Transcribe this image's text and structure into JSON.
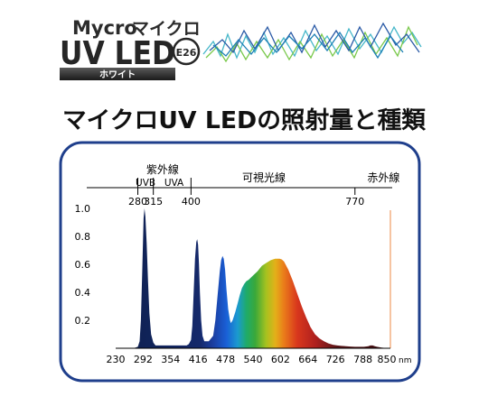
{
  "header": {
    "brand_en": "Mycro",
    "brand_jp": "マイクロ",
    "product_main": "UV LED",
    "socket_badge": "E26",
    "color_label": "ホワイト"
  },
  "section_title": "マイクロUV LEDの照射量と種類",
  "chart_data": {
    "type": "area",
    "title": "",
    "xlabel": "",
    "ylabel": "",
    "x_unit": "nm",
    "xlim": [
      230,
      850
    ],
    "ylim": [
      0,
      1.0
    ],
    "x_ticks": [
      230,
      292,
      354,
      416,
      478,
      540,
      602,
      664,
      726,
      788,
      850
    ],
    "y_ticks": [
      0.2,
      0.4,
      0.6,
      0.8,
      1.0
    ],
    "grid": false,
    "bands": {
      "uv": "紫外線",
      "uvb": "UVB",
      "uva": "UVA",
      "visible": "可視光線",
      "infrared": "赤外線"
    },
    "band_boundaries": [
      280,
      315,
      400,
      770
    ],
    "series": [
      {
        "x": [
          230,
          270,
          280,
          284,
          287,
          290,
          293,
          295,
          297,
          300,
          303,
          306,
          310,
          315,
          320,
          325,
          330,
          340,
          350,
          360,
          370,
          380,
          390,
          395,
          400,
          403,
          406,
          409,
          412,
          414,
          416,
          418,
          420,
          423,
          426,
          430,
          440,
          450,
          455,
          460,
          465,
          468,
          471,
          474,
          477,
          480,
          484,
          488,
          490,
          494,
          500,
          506,
          510,
          515,
          520,
          525,
          530,
          540,
          550,
          560,
          570,
          580,
          590,
          600,
          605,
          610,
          620,
          630,
          640,
          650,
          660,
          670,
          680,
          690,
          700,
          710,
          720,
          730,
          740,
          750,
          760,
          770,
          780,
          790,
          800,
          805,
          810,
          815,
          820,
          830,
          840,
          848,
          850
        ],
        "values": [
          0.0,
          0.0,
          0.01,
          0.05,
          0.2,
          0.55,
          0.93,
          1.0,
          0.94,
          0.75,
          0.48,
          0.25,
          0.1,
          0.04,
          0.02,
          0.02,
          0.02,
          0.02,
          0.02,
          0.02,
          0.02,
          0.02,
          0.02,
          0.03,
          0.06,
          0.16,
          0.4,
          0.64,
          0.76,
          0.78,
          0.74,
          0.6,
          0.4,
          0.2,
          0.09,
          0.05,
          0.05,
          0.09,
          0.2,
          0.38,
          0.55,
          0.63,
          0.66,
          0.64,
          0.56,
          0.42,
          0.28,
          0.2,
          0.18,
          0.2,
          0.26,
          0.33,
          0.38,
          0.43,
          0.46,
          0.48,
          0.49,
          0.52,
          0.55,
          0.59,
          0.61,
          0.63,
          0.64,
          0.64,
          0.635,
          0.62,
          0.56,
          0.48,
          0.39,
          0.3,
          0.22,
          0.15,
          0.1,
          0.07,
          0.05,
          0.035,
          0.025,
          0.02,
          0.017,
          0.015,
          0.012,
          0.01,
          0.01,
          0.01,
          0.015,
          0.02,
          0.02,
          0.015,
          0.01,
          0.005,
          0.002,
          0.0,
          0.0
        ]
      }
    ]
  },
  "colors": {
    "frame": "#1f3f8c",
    "peak_fill": "#0d1f4d",
    "ir_line": "#f4b183",
    "axis": "#000000"
  }
}
